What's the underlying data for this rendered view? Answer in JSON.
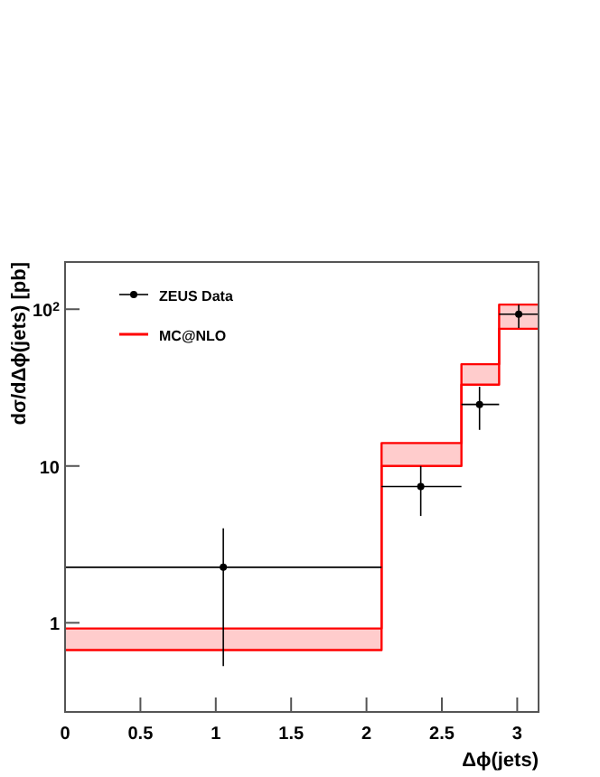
{
  "chart_data": {
    "type": "scatter",
    "xlabel": "Δϕ(jets)",
    "ylabel": "dσ/dΔϕ(jets) [pb]",
    "xlim": [
      0,
      3.1416
    ],
    "ylim": [
      0.27,
      200
    ],
    "log": "y",
    "grid": false,
    "legend": "top left",
    "xticks": [
      0,
      0.5,
      1,
      1.5,
      2,
      2.5,
      3
    ],
    "yticks": [
      1,
      10,
      {
        "value": 100,
        "label": "10$^{2}$"
      }
    ],
    "series": [
      {
        "name": "ZEUS Data",
        "marker": "circle",
        "color": "#000000",
        "x": [
          1.05,
          2.36,
          2.75,
          3.01
        ],
        "values": [
          2.26,
          7.4,
          24.7,
          93
        ],
        "errors": [
          [
            0.53,
            4.0
          ],
          [
            4.8,
            10
          ],
          [
            17,
            32
          ],
          [
            76,
            107
          ]
        ],
        "xerrors": [
          [
            0,
            2.1
          ],
          [
            2.1,
            2.63
          ],
          [
            2.63,
            2.88
          ],
          [
            2.88,
            3.1416
          ]
        ]
      },
      {
        "name": "MC@NLO",
        "type": "step",
        "color": "#ff0000",
        "x": [
          0,
          2.1,
          2.63,
          2.88,
          3.1416
        ],
        "values": [
          0.67,
          10,
          33,
          75,
          75
        ],
        "lower": [
          0.67,
          10,
          33,
          75,
          75
        ],
        "upper": [
          0.92,
          14,
          44.6,
          107,
          107
        ]
      }
    ]
  }
}
